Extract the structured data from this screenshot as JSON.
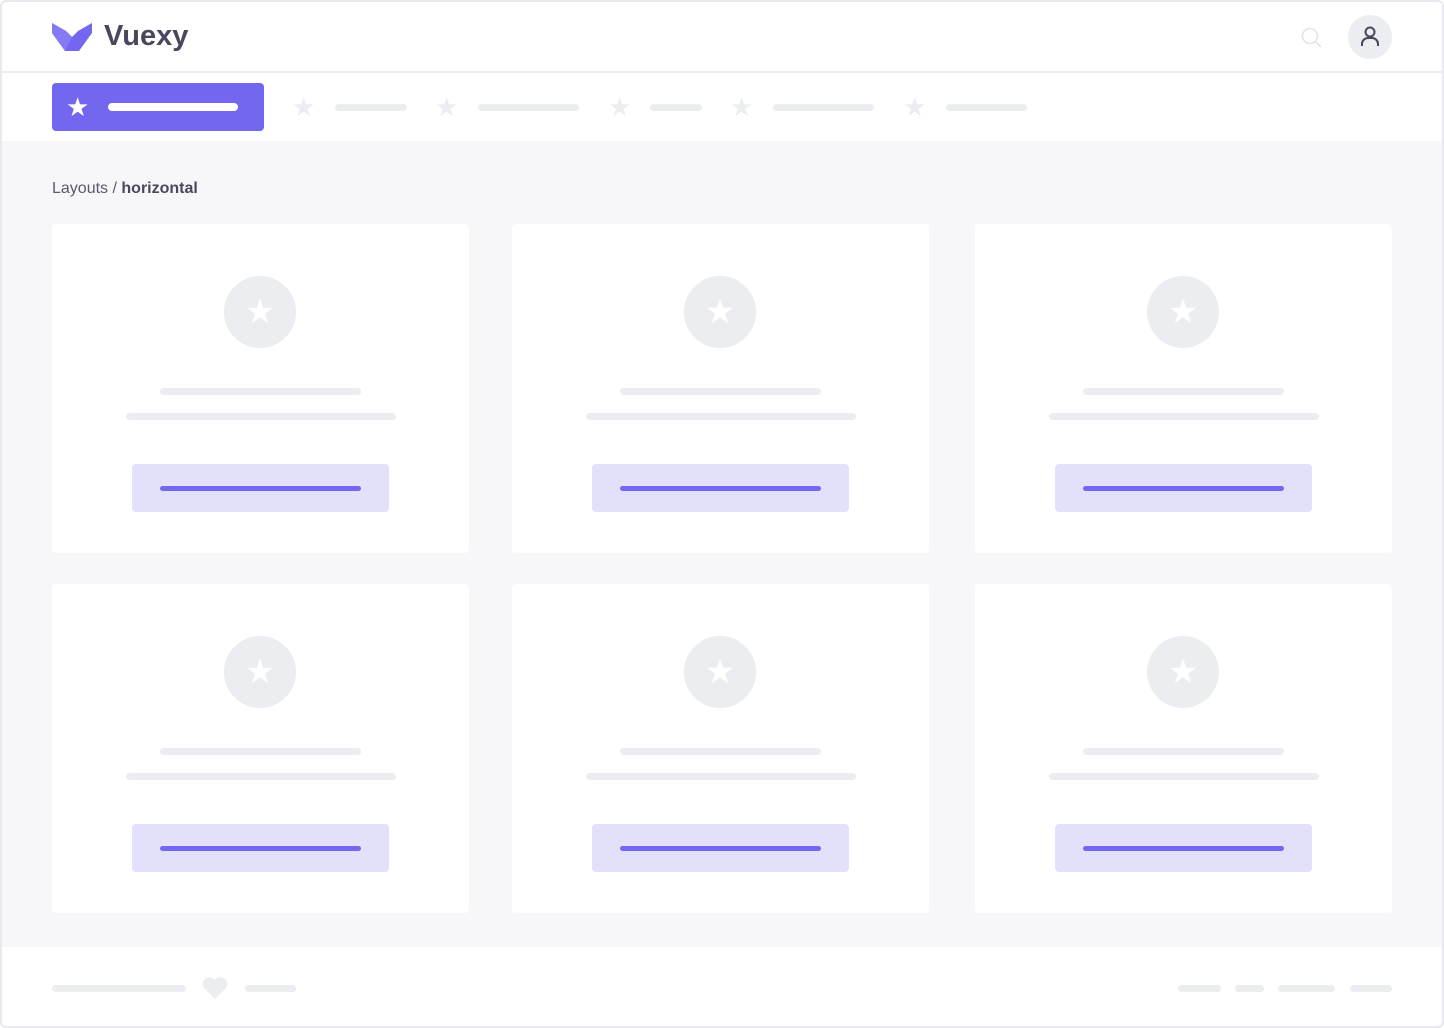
{
  "app": {
    "brand": "Vuexy",
    "accent": "#7367f0"
  },
  "header": {
    "icons": [
      "search-icon",
      "user-icon"
    ]
  },
  "nav": {
    "active_icon": "star-icon",
    "items": 5
  },
  "breadcrumb": {
    "parent": "Layouts",
    "separator": " / ",
    "current": "horizontal"
  },
  "cards": 6,
  "footer": {
    "icon": "heart-icon"
  }
}
